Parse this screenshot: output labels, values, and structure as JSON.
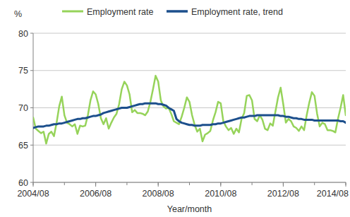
{
  "chart_data": {
    "type": "line",
    "y_label": "%",
    "x_label": "Year/month",
    "categories": [
      "2004/08",
      null,
      null,
      null,
      null,
      null,
      null,
      null,
      null,
      null,
      null,
      null,
      null,
      null,
      null,
      null,
      null,
      null,
      null,
      null,
      null,
      null,
      null,
      null,
      "2006/08",
      null,
      null,
      null,
      null,
      null,
      null,
      null,
      null,
      null,
      null,
      null,
      null,
      null,
      null,
      null,
      null,
      null,
      null,
      null,
      null,
      null,
      null,
      null,
      "2008/08",
      null,
      null,
      null,
      null,
      null,
      null,
      null,
      null,
      null,
      null,
      null,
      null,
      null,
      null,
      null,
      null,
      null,
      null,
      null,
      null,
      null,
      null,
      null,
      "2010/08",
      null,
      null,
      null,
      null,
      null,
      null,
      null,
      null,
      null,
      null,
      null,
      null,
      null,
      null,
      null,
      null,
      null,
      null,
      null,
      null,
      null,
      null,
      null,
      "2012/08",
      null,
      null,
      null,
      null,
      null,
      null,
      null,
      null,
      null,
      null,
      null,
      null,
      null,
      null,
      null,
      null,
      null,
      null,
      null,
      null,
      null,
      null,
      null,
      "2014/08"
    ],
    "series": [
      {
        "name": "Employment rate",
        "color": "#96d35a",
        "values": [
          68.7,
          67.2,
          66.9,
          66.6,
          66.8,
          65.2,
          66.5,
          66.8,
          66.2,
          68.0,
          70.2,
          71.5,
          69.0,
          68.0,
          67.8,
          67.5,
          67.8,
          66.5,
          67.6,
          67.5,
          67.6,
          69.0,
          71.0,
          72.2,
          71.8,
          70.5,
          68.6,
          67.8,
          68.6,
          67.2,
          68.0,
          68.7,
          69.2,
          70.5,
          72.5,
          73.5,
          73.0,
          71.8,
          69.4,
          69.7,
          69.3,
          69.3,
          69.2,
          69.0,
          69.5,
          70.8,
          72.5,
          74.3,
          73.5,
          71.0,
          70.2,
          69.9,
          70.0,
          69.2,
          68.2,
          68.0,
          67.8,
          68.8,
          70.0,
          71.4,
          70.8,
          69.0,
          67.7,
          66.8,
          67.2,
          65.5,
          66.4,
          66.6,
          66.9,
          68.3,
          69.4,
          70.8,
          70.6,
          68.2,
          67.5,
          67.0,
          67.3,
          66.5,
          67.2,
          66.7,
          68.5,
          69.3,
          71.6,
          71.7,
          71.0,
          68.5,
          68.2,
          69.0,
          68.4,
          67.2,
          67.0,
          67.9,
          67.6,
          69.5,
          71.4,
          72.7,
          70.5,
          68.0,
          68.5,
          68.2,
          67.5,
          67.3,
          66.9,
          67.5,
          67.0,
          69.0,
          70.7,
          72.1,
          71.6,
          69.2,
          67.5,
          68.0,
          67.8,
          67.0,
          67.0,
          66.9,
          66.7,
          68.5,
          70.0,
          71.7,
          69.0
        ]
      },
      {
        "name": "Employment rate, trend",
        "color": "#1c4f8c",
        "values": [
          67.3,
          67.4,
          67.5,
          67.5,
          67.5,
          67.6,
          67.6,
          67.7,
          67.8,
          67.8,
          67.9,
          67.9,
          68.0,
          68.1,
          68.2,
          68.3,
          68.4,
          68.5,
          68.5,
          68.6,
          68.6,
          68.7,
          68.8,
          68.9,
          68.9,
          69.0,
          69.1,
          69.3,
          69.4,
          69.5,
          69.6,
          69.7,
          69.8,
          69.9,
          70.0,
          70.0,
          70.0,
          70.1,
          70.2,
          70.3,
          70.4,
          70.5,
          70.5,
          70.6,
          70.6,
          70.6,
          70.6,
          70.6,
          70.5,
          70.5,
          70.4,
          70.3,
          70.0,
          69.8,
          69.6,
          68.5,
          68.2,
          68.0,
          67.9,
          67.8,
          67.7,
          67.7,
          67.6,
          67.6,
          67.6,
          67.7,
          67.7,
          67.7,
          67.7,
          67.8,
          67.8,
          67.9,
          67.9,
          68.0,
          68.1,
          68.2,
          68.3,
          68.4,
          68.5,
          68.6,
          68.7,
          68.7,
          68.8,
          68.9,
          68.9,
          68.9,
          69.0,
          69.0,
          69.0,
          69.0,
          69.0,
          69.0,
          69.0,
          69.0,
          69.0,
          68.9,
          68.9,
          68.8,
          68.8,
          68.7,
          68.6,
          68.6,
          68.5,
          68.5,
          68.4,
          68.4,
          68.4,
          68.4,
          68.3,
          68.3,
          68.3,
          68.3,
          68.3,
          68.3,
          68.3,
          68.3,
          68.3,
          68.3,
          68.2,
          68.2,
          68.0
        ]
      }
    ],
    "ylim": [
      60,
      80
    ],
    "yticks": [
      60,
      65,
      70,
      75,
      80
    ],
    "grid": true,
    "legend": "top"
  }
}
